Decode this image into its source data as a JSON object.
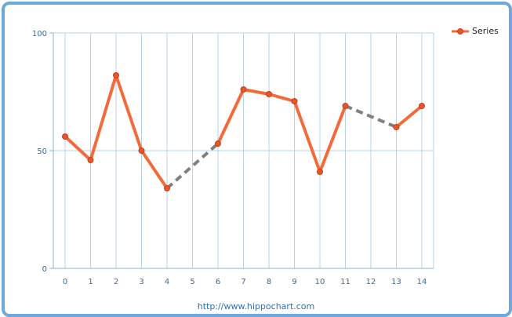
{
  "chart_data": {
    "type": "line",
    "title": "",
    "xlabel": "",
    "ylabel": "",
    "categories": [
      "0",
      "1",
      "2",
      "3",
      "4",
      "5",
      "6",
      "7",
      "8",
      "9",
      "10",
      "11",
      "12",
      "13",
      "14"
    ],
    "x_ticks": [
      "0",
      "1",
      "2",
      "3",
      "4",
      "5",
      "6",
      "7",
      "8",
      "9",
      "10",
      "11",
      "12",
      "13",
      "14"
    ],
    "y_ticks": [
      "0",
      "50",
      "100"
    ],
    "ylim": [
      0,
      100
    ],
    "grid": true,
    "legend_position": "top-right",
    "series": [
      {
        "name": "Series",
        "x": [
          0,
          1,
          2,
          3,
          4,
          6,
          7,
          8,
          9,
          10,
          11,
          13,
          14
        ],
        "values": [
          56,
          46,
          82,
          50,
          34,
          53,
          76,
          74,
          71,
          41,
          69,
          60,
          69
        ]
      }
    ],
    "gaps": [
      {
        "from": 4,
        "to": 6
      },
      {
        "from": 11,
        "to": 13
      }
    ]
  },
  "colors": {
    "series_line": "#f26b3a",
    "series_marker": "#e8552b",
    "gap_line": "#808080",
    "grid": "#b7d3e6",
    "axis": "#8ab4d4",
    "frame": "#6fa8dc"
  },
  "legend": {
    "label": "Series"
  },
  "footer": {
    "link_text": "http://www.hippochart.com"
  }
}
